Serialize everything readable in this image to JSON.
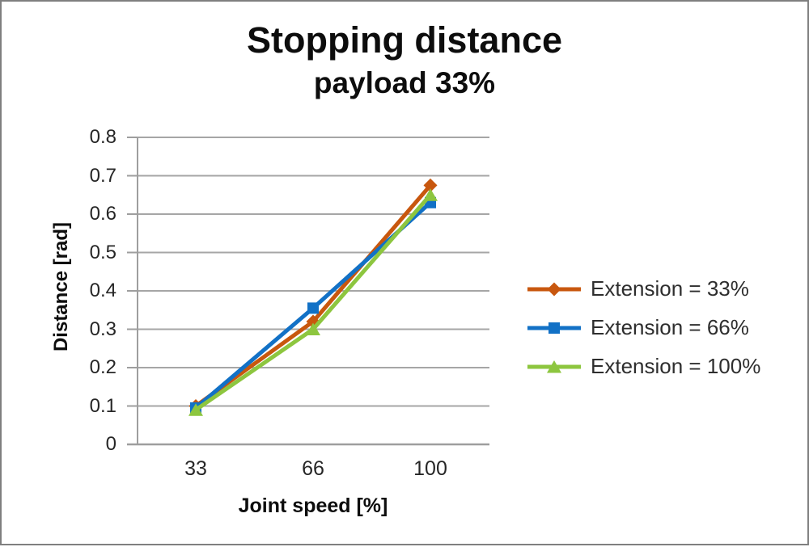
{
  "frame": {
    "border_color": "#7F7F7F",
    "background": "#FFFFFF"
  },
  "chart_data": {
    "type": "line",
    "title": "Stopping distance",
    "subtitle": "payload 33%",
    "xlabel": "Joint speed [%]",
    "ylabel": "Distance [rad]",
    "categories": [
      "33",
      "66",
      "100"
    ],
    "y_ticks": [
      0,
      0.1,
      0.2,
      0.3,
      0.4,
      0.5,
      0.6,
      0.7,
      0.8
    ],
    "y_tick_labels": [
      "0",
      "0.1",
      "0.2",
      "0.3",
      "0.4",
      "0.5",
      "0.6",
      "0.7",
      "0.8"
    ],
    "ylim": [
      0,
      0.8
    ],
    "grid": true,
    "gridline_color": "#A6A6A6",
    "axis_color": "#9E9E9E",
    "legend_position": "right",
    "series": [
      {
        "name": "Extension = 33%",
        "marker": "diamond",
        "color": "#C8570E",
        "values": [
          0.1,
          0.32,
          0.675
        ]
      },
      {
        "name": "Extension = 66%",
        "marker": "square",
        "color": "#1271C6",
        "values": [
          0.095,
          0.355,
          0.63
        ]
      },
      {
        "name": "Extension = 100%",
        "marker": "triangle",
        "color": "#8DC63F",
        "values": [
          0.09,
          0.3,
          0.65
        ]
      }
    ]
  }
}
